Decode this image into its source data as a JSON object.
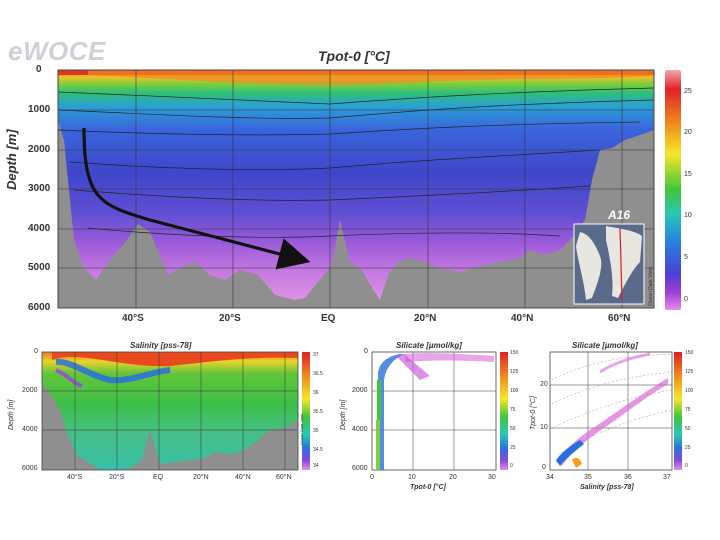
{
  "logo": "eWOCE",
  "chart_data": [
    {
      "type": "heatmap",
      "title": "Tpot-0 [°C]",
      "ylabel": "Depth [m]",
      "y_ticks": [
        "0",
        "1000",
        "2000",
        "3000",
        "4000",
        "5000",
        "6000"
      ],
      "x_ticks": [
        "40°S",
        "20°S",
        "EQ",
        "20°N",
        "40°N",
        "60°N"
      ],
      "colorbar": {
        "ticks": [
          "25",
          "20",
          "15",
          "10",
          "5",
          "0"
        ]
      },
      "annotation": "A16",
      "credit": "Ocean Data View"
    },
    {
      "type": "heatmap",
      "title": "Salinity [pss-78]",
      "ylabel": "Depth [m]",
      "y_ticks": [
        "0",
        "2000",
        "4000",
        "6000"
      ],
      "x_ticks": [
        "40°S",
        "20°S",
        "EQ",
        "20°N",
        "40°N",
        "60°N"
      ],
      "colorbar": {
        "ticks": [
          "37",
          "36.5",
          "36",
          "35.5",
          "35",
          "34.5",
          "34"
        ]
      },
      "credit": "Ocean Data View"
    },
    {
      "type": "scatter",
      "title": "Silicate [µmol/kg]",
      "ylabel": "Depth [m]",
      "xlabel": "Tpot-0 [°C]",
      "y_ticks": [
        "0",
        "2000",
        "4000",
        "6000"
      ],
      "x_ticks": [
        "0",
        "10",
        "20",
        "30"
      ],
      "colorbar": {
        "ticks": [
          "150",
          "125",
          "100",
          "75",
          "50",
          "25",
          "0"
        ]
      }
    },
    {
      "type": "scatter",
      "title": "Silicate [µmol/kg]",
      "ylabel": "Tpot-0 [°C]",
      "xlabel": "Salinity [pss-78]",
      "y_ticks": [
        "20",
        "10",
        "0"
      ],
      "x_ticks": [
        "34",
        "35",
        "36",
        "37"
      ],
      "colorbar": {
        "ticks": [
          "150",
          "125",
          "100",
          "75",
          "50",
          "25",
          "0"
        ]
      }
    }
  ]
}
